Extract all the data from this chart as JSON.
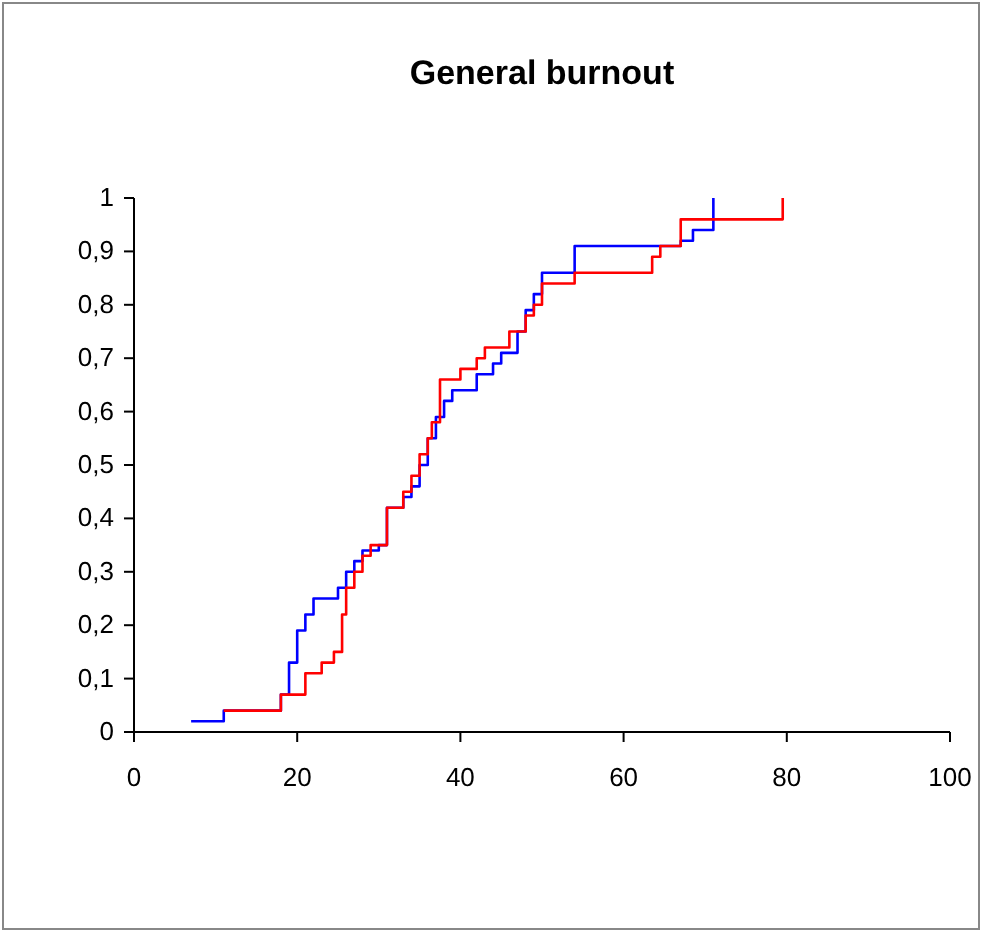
{
  "chart_data": {
    "type": "step",
    "title": "General burnout",
    "xlim": [
      0,
      100
    ],
    "xticks": [
      0,
      20,
      40,
      60,
      80,
      100
    ],
    "ylim": [
      0,
      1
    ],
    "yticks": [
      0,
      {
        "value": 0.1,
        "label": "0,1"
      },
      {
        "value": 0.2,
        "label": "0,2"
      },
      {
        "value": 0.3,
        "label": "0,3"
      },
      {
        "value": 0.4,
        "label": "0,4"
      },
      {
        "value": 0.5,
        "label": "0,5"
      },
      {
        "value": 0.6,
        "label": "0,6"
      },
      {
        "value": 0.7,
        "label": "0,7"
      },
      {
        "value": 0.8,
        "label": "0,8"
      },
      {
        "value": 0.9,
        "label": "0,9"
      },
      1
    ],
    "grid": false,
    "series": [
      {
        "color": "#0000ff",
        "x": [
          7,
          11,
          18,
          19,
          20,
          21,
          22,
          25,
          26,
          27,
          28,
          30,
          31,
          33,
          34,
          35,
          36,
          37,
          38,
          39,
          42,
          44,
          45,
          47,
          48,
          49,
          50,
          54,
          67,
          68.5,
          71,
          71
        ],
        "values": [
          0.02,
          0.04,
          0.07,
          0.13,
          0.19,
          0.22,
          0.25,
          0.27,
          0.3,
          0.32,
          0.34,
          0.35,
          0.42,
          0.44,
          0.46,
          0.5,
          0.55,
          0.59,
          0.62,
          0.64,
          0.67,
          0.69,
          0.71,
          0.75,
          0.79,
          0.82,
          0.86,
          0.91,
          0.92,
          0.94,
          1,
          1
        ]
      },
      {
        "color": "#ff0000",
        "x": [
          11,
          18,
          21,
          23,
          24.5,
          25.5,
          26,
          27,
          28,
          29,
          31,
          33,
          34,
          35,
          36,
          36.5,
          37.5,
          40,
          42,
          43,
          46,
          48,
          49,
          50,
          54,
          63.5,
          64.5,
          67,
          79.5,
          79.5
        ],
        "values": [
          0.04,
          0.07,
          0.11,
          0.13,
          0.15,
          0.22,
          0.27,
          0.3,
          0.33,
          0.35,
          0.42,
          0.45,
          0.48,
          0.52,
          0.55,
          0.58,
          0.66,
          0.68,
          0.7,
          0.72,
          0.75,
          0.78,
          0.8,
          0.84,
          0.86,
          0.89,
          0.91,
          0.96,
          1,
          1
        ]
      }
    ]
  }
}
